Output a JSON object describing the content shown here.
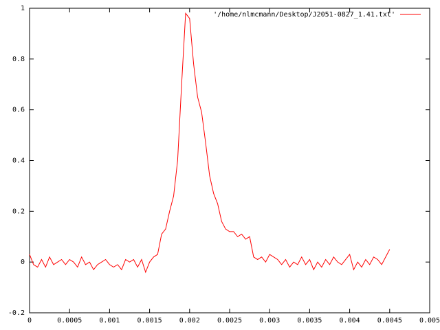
{
  "chart_data": {
    "type": "line",
    "x": [
      0,
      5e-05,
      0.0001,
      0.00015,
      0.0002,
      0.00025,
      0.0003,
      0.00035,
      0.0004,
      0.00045,
      0.0005,
      0.00055,
      0.0006,
      0.00065,
      0.0007,
      0.00075,
      0.0008,
      0.00085,
      0.0009,
      0.00095,
      0.001,
      0.00105,
      0.0011,
      0.00115,
      0.0012,
      0.00125,
      0.0013,
      0.00135,
      0.0014,
      0.00145,
      0.0015,
      0.00155,
      0.0016,
      0.00165,
      0.0017,
      0.00175,
      0.0018,
      0.00185,
      0.0019,
      0.00195,
      0.002,
      0.00205,
      0.0021,
      0.00215,
      0.0022,
      0.00225,
      0.0023,
      0.00235,
      0.0024,
      0.00245,
      0.0025,
      0.00255,
      0.0026,
      0.00265,
      0.0027,
      0.00275,
      0.0028,
      0.00285,
      0.0029,
      0.00295,
      0.003,
      0.00305,
      0.0031,
      0.00315,
      0.0032,
      0.00325,
      0.0033,
      0.00335,
      0.0034,
      0.00345,
      0.0035,
      0.00355,
      0.0036,
      0.00365,
      0.0037,
      0.00375,
      0.0038,
      0.00385,
      0.0039,
      0.00395,
      0.004,
      0.00405,
      0.0041,
      0.00415,
      0.0042,
      0.00425,
      0.0043,
      0.00435,
      0.0044,
      0.00445,
      0.0045
    ],
    "series": [
      {
        "name": "'/home/nlmcmann/Desktop/J2051-0827_1.41.txt'",
        "color": "#ff0000",
        "values": [
          0.03,
          -0.01,
          -0.02,
          0.01,
          -0.02,
          0.02,
          -0.01,
          0.0,
          0.01,
          -0.01,
          0.01,
          0.0,
          -0.02,
          0.02,
          -0.01,
          0.0,
          -0.03,
          -0.01,
          0.0,
          0.01,
          -0.01,
          -0.02,
          -0.01,
          -0.03,
          0.01,
          0.0,
          0.01,
          -0.02,
          0.01,
          -0.04,
          0.0,
          0.02,
          0.03,
          0.11,
          0.13,
          0.2,
          0.26,
          0.4,
          0.7,
          0.98,
          0.96,
          0.78,
          0.65,
          0.59,
          0.47,
          0.34,
          0.27,
          0.23,
          0.16,
          0.13,
          0.12,
          0.12,
          0.1,
          0.11,
          0.09,
          0.1,
          0.02,
          0.01,
          0.02,
          0.0,
          0.03,
          0.02,
          0.01,
          -0.01,
          0.01,
          -0.02,
          0.0,
          -0.01,
          0.02,
          -0.01,
          0.01,
          -0.03,
          0.0,
          -0.02,
          0.01,
          -0.01,
          0.02,
          0.0,
          -0.01,
          0.01,
          0.03,
          -0.03,
          0.0,
          -0.02,
          0.01,
          -0.01,
          0.02,
          0.01,
          -0.01,
          0.02,
          0.05
        ]
      }
    ],
    "xlim": [
      0,
      0.005
    ],
    "xticks": [
      0,
      0.0005,
      0.001,
      0.0015,
      0.002,
      0.0025,
      0.003,
      0.0035,
      0.004,
      0.0045,
      0.005
    ],
    "ylim": [
      -0.2,
      1
    ],
    "yticks": [
      -0.2,
      0,
      0.2,
      0.4,
      0.6,
      0.8,
      1
    ],
    "legend": "top-right",
    "grid": false
  }
}
